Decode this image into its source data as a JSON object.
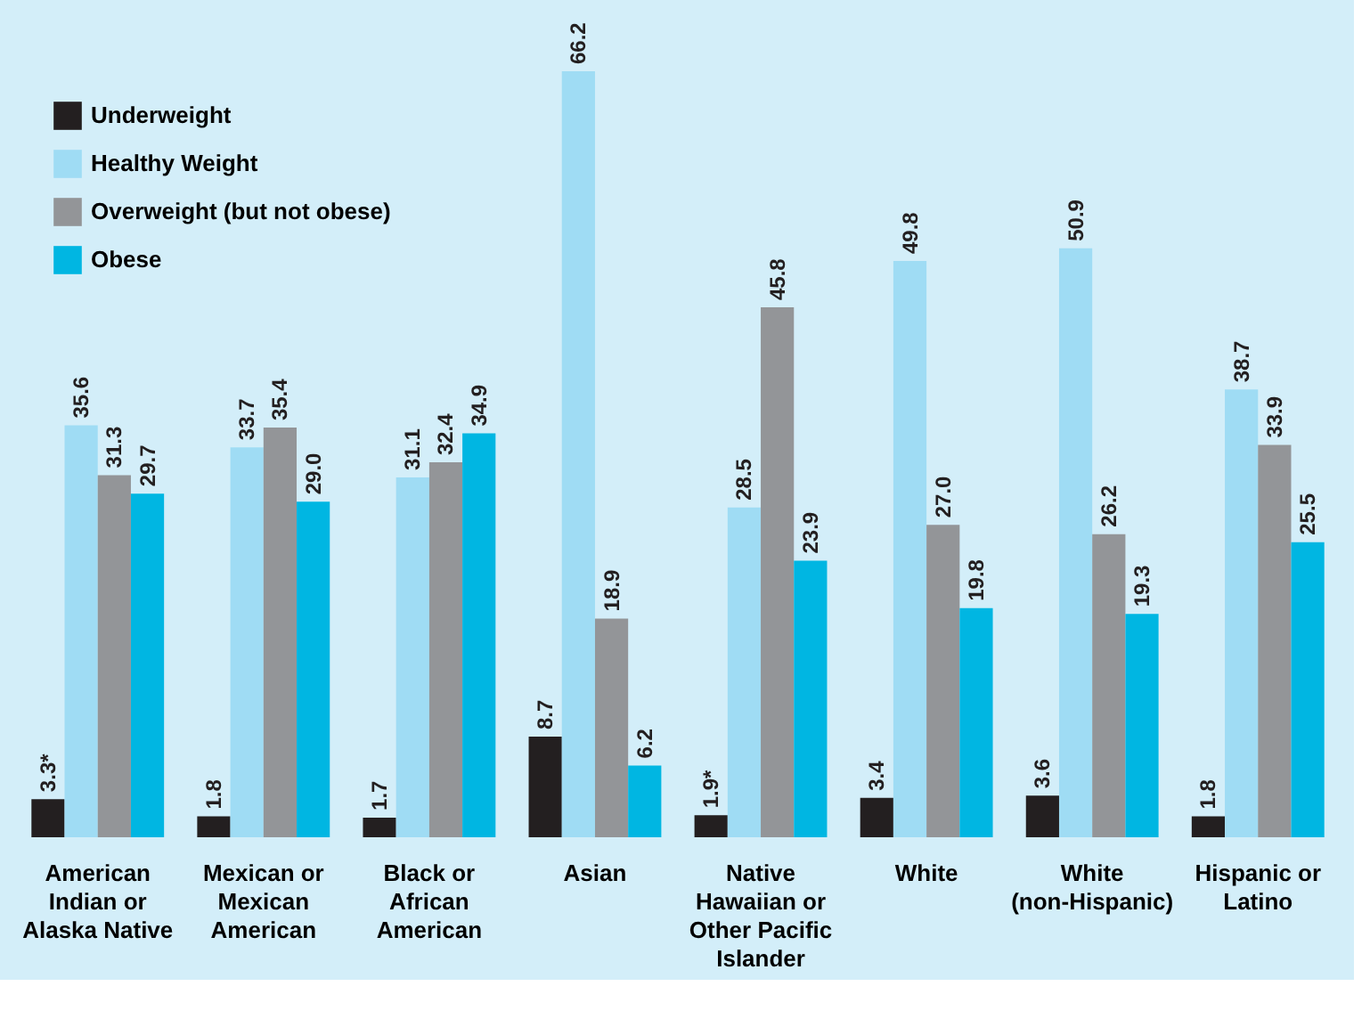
{
  "chart_data": {
    "type": "bar",
    "categories": [
      "American Indian or Alaska Native",
      "Mexican or Mexican American",
      "Black or African American",
      "Asian",
      "Native Hawaiian or Other Pacific Islander",
      "White",
      "White (non-Hispanic)",
      "Hispanic or Latino"
    ],
    "series": [
      {
        "name": "Underweight",
        "color": "#231f20",
        "values": [
          3.3,
          1.8,
          1.7,
          8.7,
          1.9,
          3.4,
          3.6,
          1.8
        ],
        "value_labels": [
          "3.3*",
          "1.8",
          "1.7",
          "8.7",
          "1.9*",
          "3.4",
          "3.6",
          "1.8"
        ]
      },
      {
        "name": "Healthy Weight",
        "color": "#9fdcf4",
        "values": [
          35.6,
          33.7,
          31.1,
          66.2,
          28.5,
          49.8,
          50.9,
          38.7
        ],
        "value_labels": [
          "35.6",
          "33.7",
          "31.1",
          "66.2",
          "28.5",
          "49.8",
          "50.9",
          "38.7"
        ]
      },
      {
        "name": "Overweight (but not obese)",
        "color": "#939598",
        "values": [
          31.3,
          35.4,
          32.4,
          18.9,
          45.8,
          27.0,
          26.2,
          33.9
        ],
        "value_labels": [
          "31.3",
          "35.4",
          "32.4",
          "18.9",
          "45.8",
          "27.0",
          "26.2",
          "33.9"
        ]
      },
      {
        "name": "Obese",
        "color": "#00b6e2",
        "values": [
          29.7,
          29.0,
          34.9,
          6.2,
          23.9,
          19.8,
          19.3,
          25.5
        ],
        "value_labels": [
          "29.7",
          "29.0",
          "34.9",
          "6.2",
          "23.9",
          "19.8",
          "19.3",
          "25.5"
        ]
      }
    ],
    "legend": "top left",
    "grid": false
  }
}
